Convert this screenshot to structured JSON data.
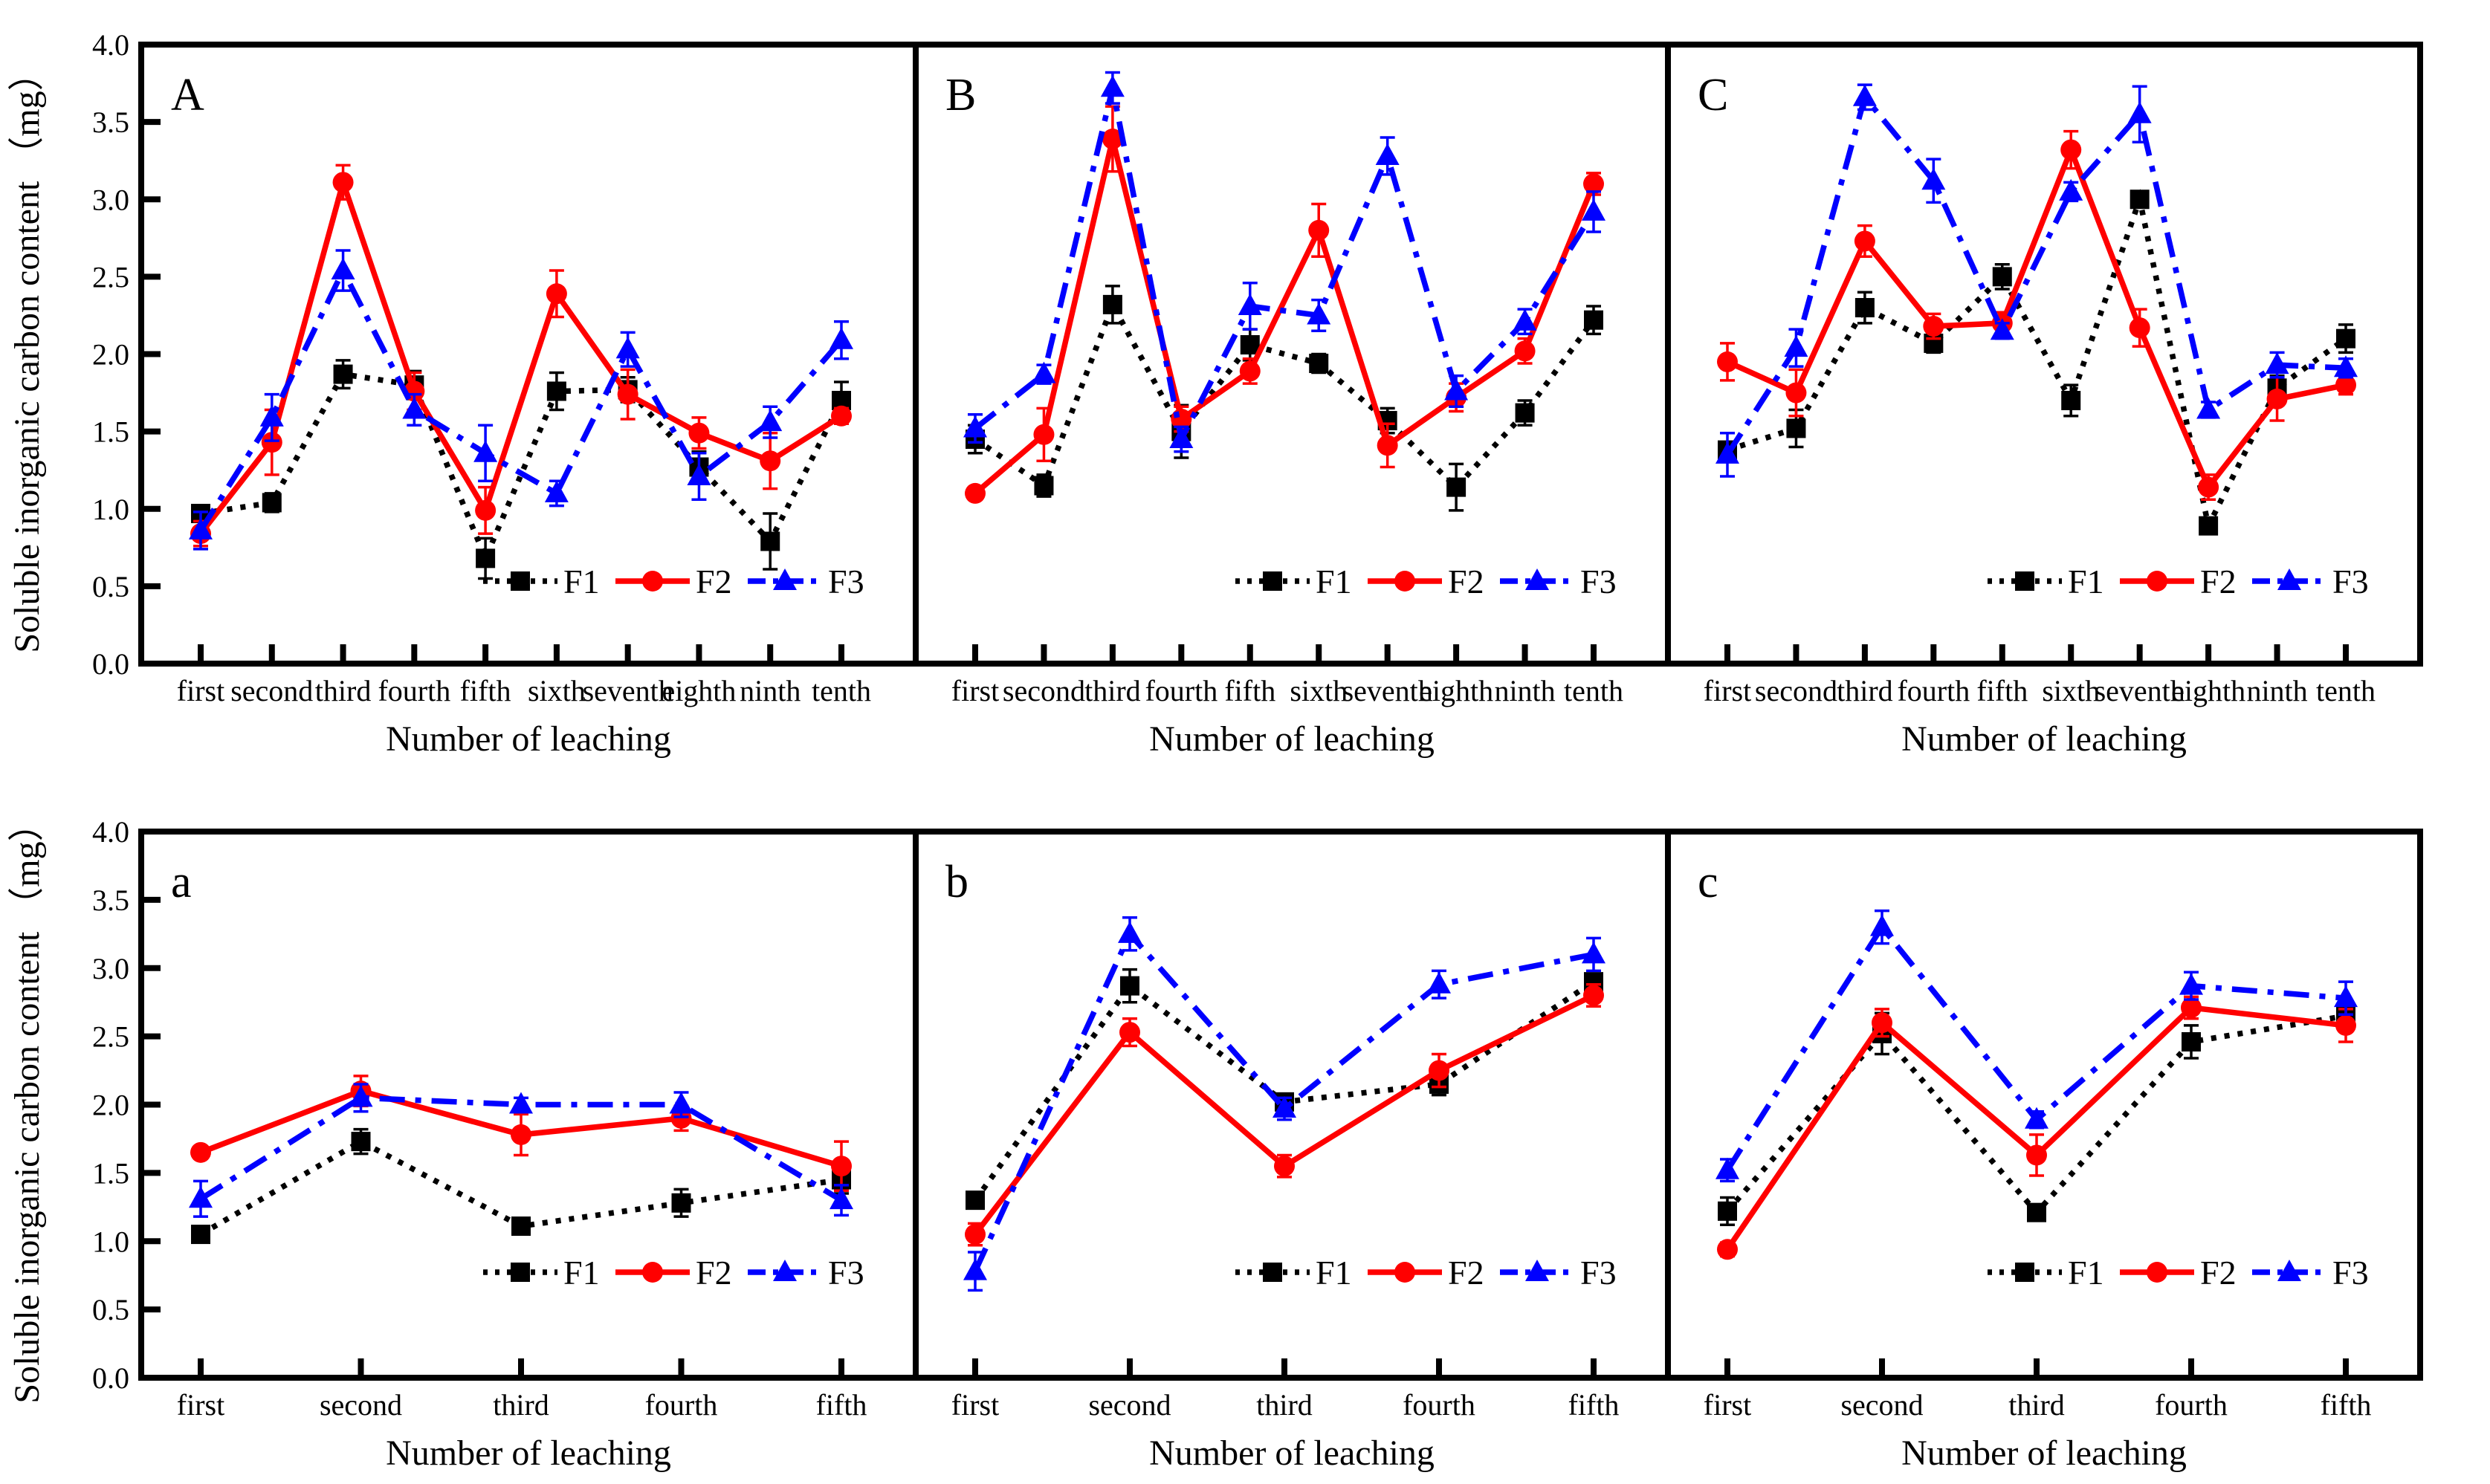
{
  "figure": {
    "background": "#ffffff",
    "series_styles": [
      {
        "name": "F1",
        "color": "#000000",
        "line": "dotted",
        "marker": "square"
      },
      {
        "name": "F2",
        "color": "#ff0000",
        "line": "solid",
        "marker": "circle"
      },
      {
        "name": "F3",
        "color": "#0000ff",
        "line": "dashdot",
        "marker": "triangle"
      }
    ]
  },
  "axes": {
    "xlabel": "Number of leaching",
    "ylabel": "Soluble inorganic carbon content （mg）",
    "ylim": [
      0.0,
      4.0
    ],
    "yticks": [
      "0.0",
      "0.5",
      "1.0",
      "1.5",
      "2.0",
      "2.5",
      "3.0",
      "3.5",
      "4.0"
    ],
    "grid": "off",
    "legend_position": "inside-bottom-right"
  },
  "chart_data": [
    {
      "label": "A",
      "type": "line",
      "row": "top",
      "show_y_axis": true,
      "categories": [
        "first",
        "second",
        "third",
        "fourth",
        "fifth",
        "sixth",
        "seventh",
        "eighth",
        "ninth",
        "tenth"
      ],
      "legend": [
        "F1",
        "F2",
        "F3"
      ],
      "series": [
        {
          "name": "F1",
          "values": [
            0.97,
            1.04,
            1.87,
            1.8,
            0.68,
            1.76,
            1.77,
            1.27,
            0.79,
            1.7
          ],
          "errors": [
            0.05,
            0.06,
            0.09,
            0.09,
            0.13,
            0.12,
            0.08,
            0.1,
            0.18,
            0.12
          ]
        },
        {
          "name": "F2",
          "values": [
            0.84,
            1.43,
            3.11,
            1.76,
            0.99,
            2.39,
            1.74,
            1.49,
            1.31,
            1.6
          ],
          "errors": [
            0.08,
            0.21,
            0.11,
            0.12,
            0.15,
            0.15,
            0.16,
            0.1,
            0.18,
            0.05
          ]
        },
        {
          "name": "F3",
          "values": [
            0.86,
            1.59,
            2.54,
            1.64,
            1.36,
            1.1,
            2.03,
            1.21,
            1.56,
            2.09
          ],
          "errors": [
            0.12,
            0.15,
            0.13,
            0.1,
            0.18,
            0.08,
            0.11,
            0.15,
            0.1,
            0.12
          ]
        }
      ]
    },
    {
      "label": "B",
      "type": "line",
      "row": "top",
      "show_y_axis": false,
      "categories": [
        "first",
        "second",
        "third",
        "fourth",
        "fifth",
        "sixth",
        "seventh",
        "eighth",
        "ninth",
        "tenth"
      ],
      "legend": [
        "F1",
        "F2",
        "F3"
      ],
      "series": [
        {
          "name": "F1",
          "values": [
            1.45,
            1.15,
            2.32,
            1.5,
            2.06,
            1.94,
            1.57,
            1.14,
            1.62,
            2.22
          ],
          "errors": [
            0.09,
            0.07,
            0.12,
            0.17,
            0.1,
            0.06,
            0.08,
            0.15,
            0.08,
            0.09
          ]
        },
        {
          "name": "F2",
          "values": [
            1.1,
            1.48,
            3.39,
            1.58,
            1.89,
            2.8,
            1.41,
            1.72,
            2.02,
            3.1
          ],
          "errors": [
            0.04,
            0.17,
            0.21,
            0.08,
            0.08,
            0.17,
            0.14,
            0.09,
            0.08,
            0.07
          ]
        },
        {
          "name": "F3",
          "values": [
            1.52,
            1.87,
            3.72,
            1.45,
            2.31,
            2.25,
            3.28,
            1.76,
            2.21,
            2.92
          ],
          "errors": [
            0.09,
            0.06,
            0.1,
            0.08,
            0.15,
            0.1,
            0.12,
            0.1,
            0.08,
            0.13
          ]
        }
      ]
    },
    {
      "label": "C",
      "type": "line",
      "row": "top",
      "show_y_axis": false,
      "categories": [
        "first",
        "second",
        "third",
        "fourth",
        "fifth",
        "sixth",
        "seventh",
        "eighth",
        "ninth",
        "tenth"
      ],
      "legend": [
        "F1",
        "F2",
        "F3"
      ],
      "series": [
        {
          "name": "F1",
          "values": [
            1.38,
            1.52,
            2.3,
            2.07,
            2.5,
            1.7,
            3.0,
            0.89,
            1.78,
            2.1
          ],
          "errors": [
            0.05,
            0.12,
            0.1,
            0.06,
            0.08,
            0.1,
            0.05,
            0.04,
            0.08,
            0.09
          ]
        },
        {
          "name": "F2",
          "values": [
            1.95,
            1.75,
            2.73,
            2.18,
            2.2,
            3.32,
            2.17,
            1.14,
            1.71,
            1.8
          ],
          "errors": [
            0.12,
            0.15,
            0.1,
            0.08,
            0.07,
            0.12,
            0.12,
            0.08,
            0.14,
            0.06
          ]
        },
        {
          "name": "F3",
          "values": [
            1.35,
            2.04,
            3.66,
            3.12,
            2.15,
            3.05,
            3.55,
            1.64,
            1.93,
            1.91
          ],
          "errors": [
            0.14,
            0.12,
            0.08,
            0.14,
            0.05,
            0.06,
            0.18,
            0.05,
            0.08,
            0.06
          ]
        }
      ]
    },
    {
      "label": "a",
      "type": "line",
      "row": "bottom",
      "show_y_axis": true,
      "categories": [
        "first",
        "second",
        "third",
        "fourth",
        "fifth"
      ],
      "legend": [
        "F1",
        "F2",
        "F3"
      ],
      "series": [
        {
          "name": "F1",
          "values": [
            1.05,
            1.73,
            1.11,
            1.28,
            1.45
          ],
          "errors": [
            0.04,
            0.09,
            0.05,
            0.1,
            0.1
          ]
        },
        {
          "name": "F2",
          "values": [
            1.65,
            2.1,
            1.78,
            1.9,
            1.55
          ],
          "errors": [
            0.04,
            0.11,
            0.15,
            0.09,
            0.18
          ]
        },
        {
          "name": "F3",
          "values": [
            1.31,
            2.05,
            2.0,
            2.0,
            1.3
          ],
          "errors": [
            0.13,
            0.1,
            0.05,
            0.09,
            0.11
          ]
        }
      ]
    },
    {
      "label": "b",
      "type": "line",
      "row": "bottom",
      "show_y_axis": false,
      "categories": [
        "first",
        "second",
        "third",
        "fourth",
        "fifth"
      ],
      "legend": [
        "F1",
        "F2",
        "F3"
      ],
      "series": [
        {
          "name": "F1",
          "values": [
            1.3,
            2.87,
            2.02,
            2.15,
            2.9
          ],
          "errors": [
            0.04,
            0.12,
            0.05,
            0.08,
            0.05
          ]
        },
        {
          "name": "F2",
          "values": [
            1.05,
            2.53,
            1.55,
            2.25,
            2.8
          ],
          "errors": [
            0.08,
            0.1,
            0.08,
            0.12,
            0.08
          ]
        },
        {
          "name": "F3",
          "values": [
            0.78,
            3.25,
            1.97,
            2.88,
            3.1
          ],
          "errors": [
            0.14,
            0.12,
            0.08,
            0.1,
            0.12
          ]
        }
      ]
    },
    {
      "label": "c",
      "type": "line",
      "row": "bottom",
      "show_y_axis": false,
      "categories": [
        "first",
        "second",
        "third",
        "fourth",
        "fifth"
      ],
      "legend": [
        "F1",
        "F2",
        "F3"
      ],
      "series": [
        {
          "name": "F1",
          "values": [
            1.22,
            2.52,
            1.21,
            2.46,
            2.65
          ],
          "errors": [
            0.1,
            0.15,
            0.04,
            0.12,
            0.06
          ]
        },
        {
          "name": "F2",
          "values": [
            0.94,
            2.6,
            1.63,
            2.71,
            2.58
          ],
          "errors": [
            0.05,
            0.1,
            0.15,
            0.08,
            0.12
          ]
        },
        {
          "name": "F3",
          "values": [
            1.52,
            3.3,
            1.89,
            2.87,
            2.78
          ],
          "errors": [
            0.08,
            0.12,
            0.06,
            0.1,
            0.12
          ]
        }
      ]
    }
  ]
}
